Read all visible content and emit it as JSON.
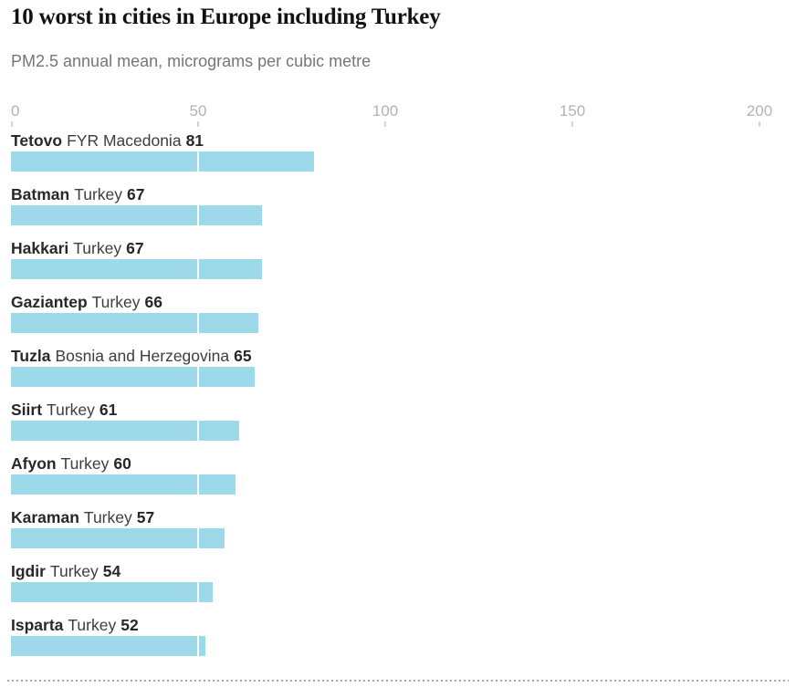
{
  "header": {
    "title": "10 worst in cities in Europe including Turkey",
    "subtitle": "PM2.5 annual mean, micrograms per cubic metre"
  },
  "colors": {
    "bar": "#9dd9e8",
    "title_text": "#121212",
    "subtitle_text": "#767676",
    "axis_label": "#b3b3b3",
    "tick_mark": "#d2d2d2",
    "label_bold": "#282828",
    "label_regular": "#3d3d3d",
    "gridline_over_bar": "#ffffff",
    "divider": "#a6a6a6"
  },
  "chart_data": {
    "type": "bar",
    "orientation": "horizontal",
    "title": "10 worst in cities in Europe including Turkey",
    "subtitle": "PM2.5 annual mean, micrograms per cubic metre",
    "xlabel": "PM2.5 annual mean, micrograms per cubic metre",
    "ylabel": "",
    "xlim": [
      0,
      200
    ],
    "x_ticks": [
      0,
      50,
      100,
      150,
      200
    ],
    "grid": "white vertical gridlines visible only over bars",
    "legend": "none",
    "categories": [
      "Tetovo, FYR Macedonia",
      "Batman, Turkey",
      "Hakkari, Turkey",
      "Gaziantep, Turkey",
      "Tuzla, Bosnia and Herzegovina",
      "Siirt, Turkey",
      "Afyon, Turkey",
      "Karaman, Turkey",
      "Igdir, Turkey",
      "Isparta, Turkey"
    ],
    "values": [
      81,
      67,
      67,
      66,
      65,
      61,
      60,
      57,
      54,
      52
    ],
    "rows": [
      {
        "city": "Tetovo",
        "country": "FYR Macedonia",
        "value": 81
      },
      {
        "city": "Batman",
        "country": "Turkey",
        "value": 67
      },
      {
        "city": "Hakkari",
        "country": "Turkey",
        "value": 67
      },
      {
        "city": "Gaziantep",
        "country": "Turkey",
        "value": 66
      },
      {
        "city": "Tuzla",
        "country": "Bosnia and Herzegovina",
        "value": 65
      },
      {
        "city": "Siirt",
        "country": "Turkey",
        "value": 61
      },
      {
        "city": "Afyon",
        "country": "Turkey",
        "value": 60
      },
      {
        "city": "Karaman",
        "country": "Turkey",
        "value": 57
      },
      {
        "city": "Igdir",
        "country": "Turkey",
        "value": 54
      },
      {
        "city": "Isparta",
        "country": "Turkey",
        "value": 52
      }
    ]
  }
}
